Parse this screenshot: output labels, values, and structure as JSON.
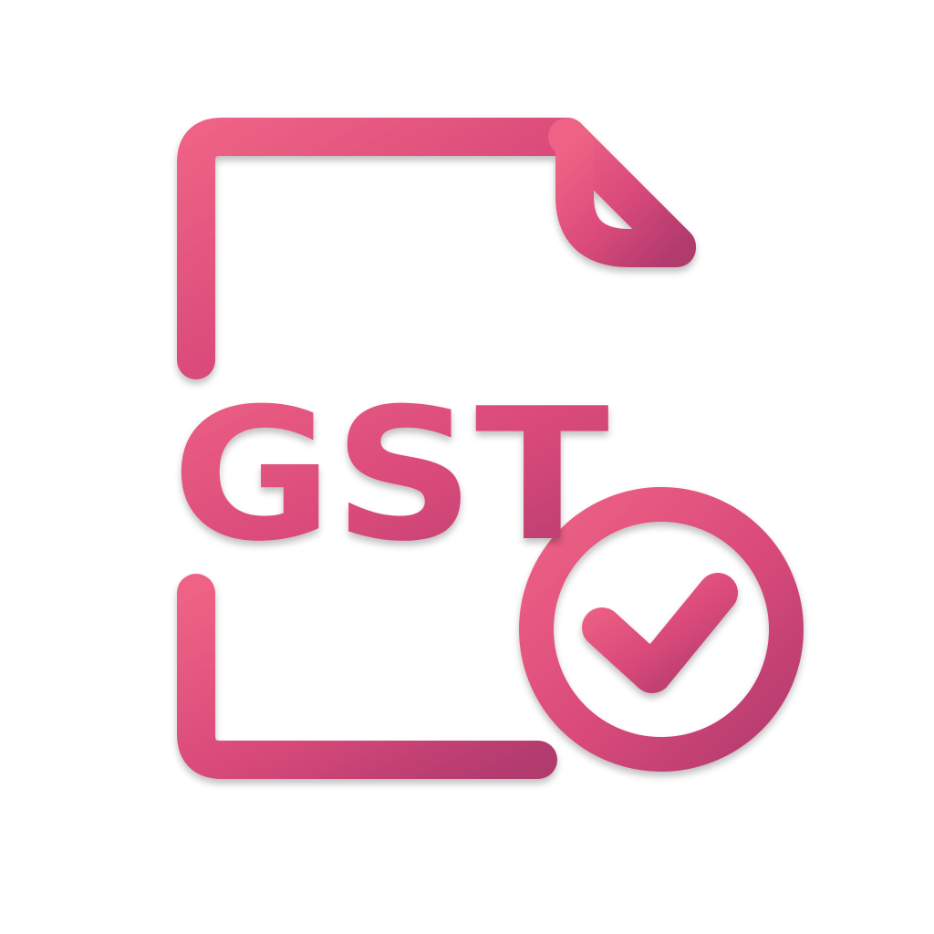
{
  "icon": {
    "name": "gst-document-verified-icon",
    "label": "GST",
    "colors": {
      "primary": "#d94a7a",
      "primary_light": "#ea5f85",
      "primary_dark": "#b83a6b",
      "background": "#ffffff"
    },
    "parts": [
      "document-icon",
      "text-lines",
      "gst-label",
      "check-circle-icon"
    ]
  }
}
